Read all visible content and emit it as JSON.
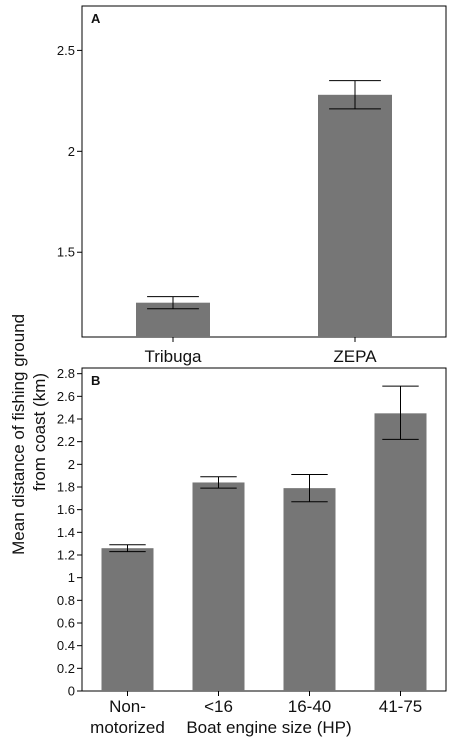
{
  "figure": {
    "ylabel_line1": "Mean distance of fishing ground",
    "ylabel_line2": "from coast (km)"
  },
  "chart_data": [
    {
      "type": "bar",
      "panel_label": "A",
      "categories": [
        "Tribuga",
        "ZEPA"
      ],
      "values": [
        1.25,
        2.28
      ],
      "error_low": [
        1.22,
        2.21
      ],
      "error_high": [
        1.28,
        2.35
      ],
      "ylim": [
        1.08,
        2.72
      ],
      "yticks": [
        1.5,
        2,
        2.5
      ],
      "ytick_labels": [
        "1.5",
        "2",
        "2.5"
      ],
      "xlabel": "",
      "ylabel": "Mean distance of fishing ground from coast (km)",
      "bar_color": "#767676",
      "grid": false
    },
    {
      "type": "bar",
      "panel_label": "B",
      "categories": [
        "Non-motorized",
        "<16",
        "16-40",
        "41-75"
      ],
      "category_lines": [
        [
          "Non-",
          "motorized"
        ],
        [
          "<16"
        ],
        [
          "16-40"
        ],
        [
          "41-75"
        ]
      ],
      "values": [
        1.26,
        1.84,
        1.79,
        2.45
      ],
      "error_low": [
        1.23,
        1.79,
        1.67,
        2.22
      ],
      "error_high": [
        1.29,
        1.89,
        1.91,
        2.69
      ],
      "ylim": [
        0,
        2.85
      ],
      "yticks": [
        0,
        0.2,
        0.4,
        0.6,
        0.8,
        1,
        1.2,
        1.4,
        1.6,
        1.8,
        2,
        2.2,
        2.4,
        2.6,
        2.8
      ],
      "ytick_labels": [
        "0",
        "0.2",
        "0.4",
        "0.6",
        "0.8",
        "1",
        "1.2",
        "1.4",
        "1.6",
        "1.8",
        "2",
        "2.2",
        "2.4",
        "2.6",
        "2.8"
      ],
      "xlabel": "Boat engine size (HP)",
      "ylabel": "Mean distance of fishing ground from coast (km)",
      "bar_color": "#767676",
      "grid": false
    }
  ]
}
